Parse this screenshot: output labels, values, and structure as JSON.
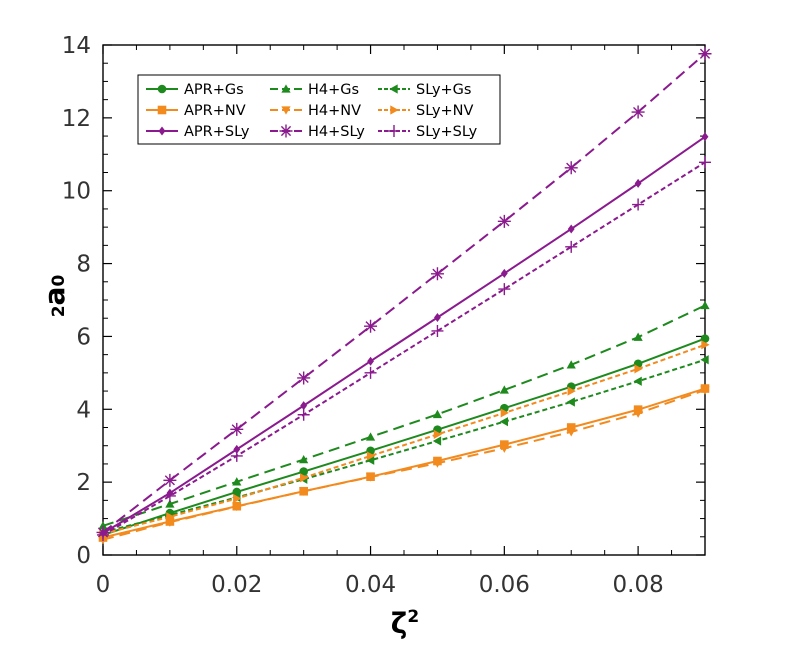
{
  "chart_data": {
    "type": "line",
    "xlabel": "ζ",
    "xlabel_sup": "2",
    "ylabel_pre": "2",
    "ylabel_main": "a",
    "ylabel_sub": "0",
    "xlim": [
      0,
      0.09
    ],
    "ylim": [
      0,
      14
    ],
    "xticks": [
      0,
      0.02,
      0.04,
      0.06,
      0.08
    ],
    "xtick_labels": [
      "0",
      "0.02",
      "0.04",
      "0.06",
      "0.08"
    ],
    "yticks": [
      0,
      2,
      4,
      6,
      8,
      10,
      12,
      14
    ],
    "ytick_labels": [
      "0",
      "2",
      "4",
      "6",
      "8",
      "10",
      "12",
      "14"
    ],
    "legend_position": "top-left",
    "x": [
      0,
      0.01,
      0.02,
      0.03,
      0.04,
      0.05,
      0.06,
      0.07,
      0.08,
      0.09
    ],
    "series": [
      {
        "name": "APR+Gs",
        "color": "#1e8a1e",
        "dash": "solid",
        "marker": "circle",
        "values": [
          0.55,
          1.15,
          1.73,
          2.29,
          2.86,
          3.44,
          4.03,
          4.62,
          5.25,
          5.94
        ]
      },
      {
        "name": "H4+Gs",
        "color": "#1e8a1e",
        "dash": "long",
        "marker": "triangle-up",
        "values": [
          0.8,
          1.4,
          2.01,
          2.62,
          3.24,
          3.86,
          4.53,
          5.22,
          5.98,
          6.85
        ]
      },
      {
        "name": "SLy+Gs",
        "color": "#1e8a1e",
        "dash": "short",
        "marker": "triangle-left",
        "values": [
          0.62,
          1.1,
          1.58,
          2.08,
          2.6,
          3.13,
          3.66,
          4.2,
          4.77,
          5.36
        ]
      },
      {
        "name": "APR+NV",
        "color": "#f28a1e",
        "dash": "solid",
        "marker": "square",
        "values": [
          0.48,
          0.92,
          1.34,
          1.75,
          2.15,
          2.58,
          3.03,
          3.5,
          3.99,
          4.57
        ]
      },
      {
        "name": "H4+NV",
        "color": "#f28a1e",
        "dash": "long",
        "marker": "triangle-down",
        "values": [
          0.42,
          0.9,
          1.33,
          1.75,
          2.14,
          2.52,
          2.93,
          3.38,
          3.89,
          4.53
        ]
      },
      {
        "name": "SLy+NV",
        "color": "#f28a1e",
        "dash": "short",
        "marker": "triangle-right",
        "values": [
          0.58,
          1.05,
          1.55,
          2.12,
          2.72,
          3.31,
          3.9,
          4.5,
          5.11,
          5.77
        ]
      },
      {
        "name": "APR+SLy",
        "color": "#8a1a8e",
        "dash": "solid",
        "marker": "diamond",
        "values": [
          0.6,
          1.7,
          2.9,
          4.1,
          5.32,
          6.52,
          7.73,
          8.95,
          10.2,
          11.48
        ]
      },
      {
        "name": "H4+SLy",
        "color": "#8a1a8e",
        "dash": "long",
        "marker": "asterisk",
        "values": [
          0.62,
          2.05,
          3.45,
          4.86,
          6.28,
          7.72,
          9.16,
          10.63,
          12.16,
          13.76
        ]
      },
      {
        "name": "SLy+SLy",
        "color": "#8a1a8e",
        "dash": "short",
        "marker": "plus",
        "values": [
          0.55,
          1.62,
          2.72,
          3.85,
          5.0,
          6.15,
          7.3,
          8.46,
          9.62,
          10.78
        ]
      }
    ]
  }
}
